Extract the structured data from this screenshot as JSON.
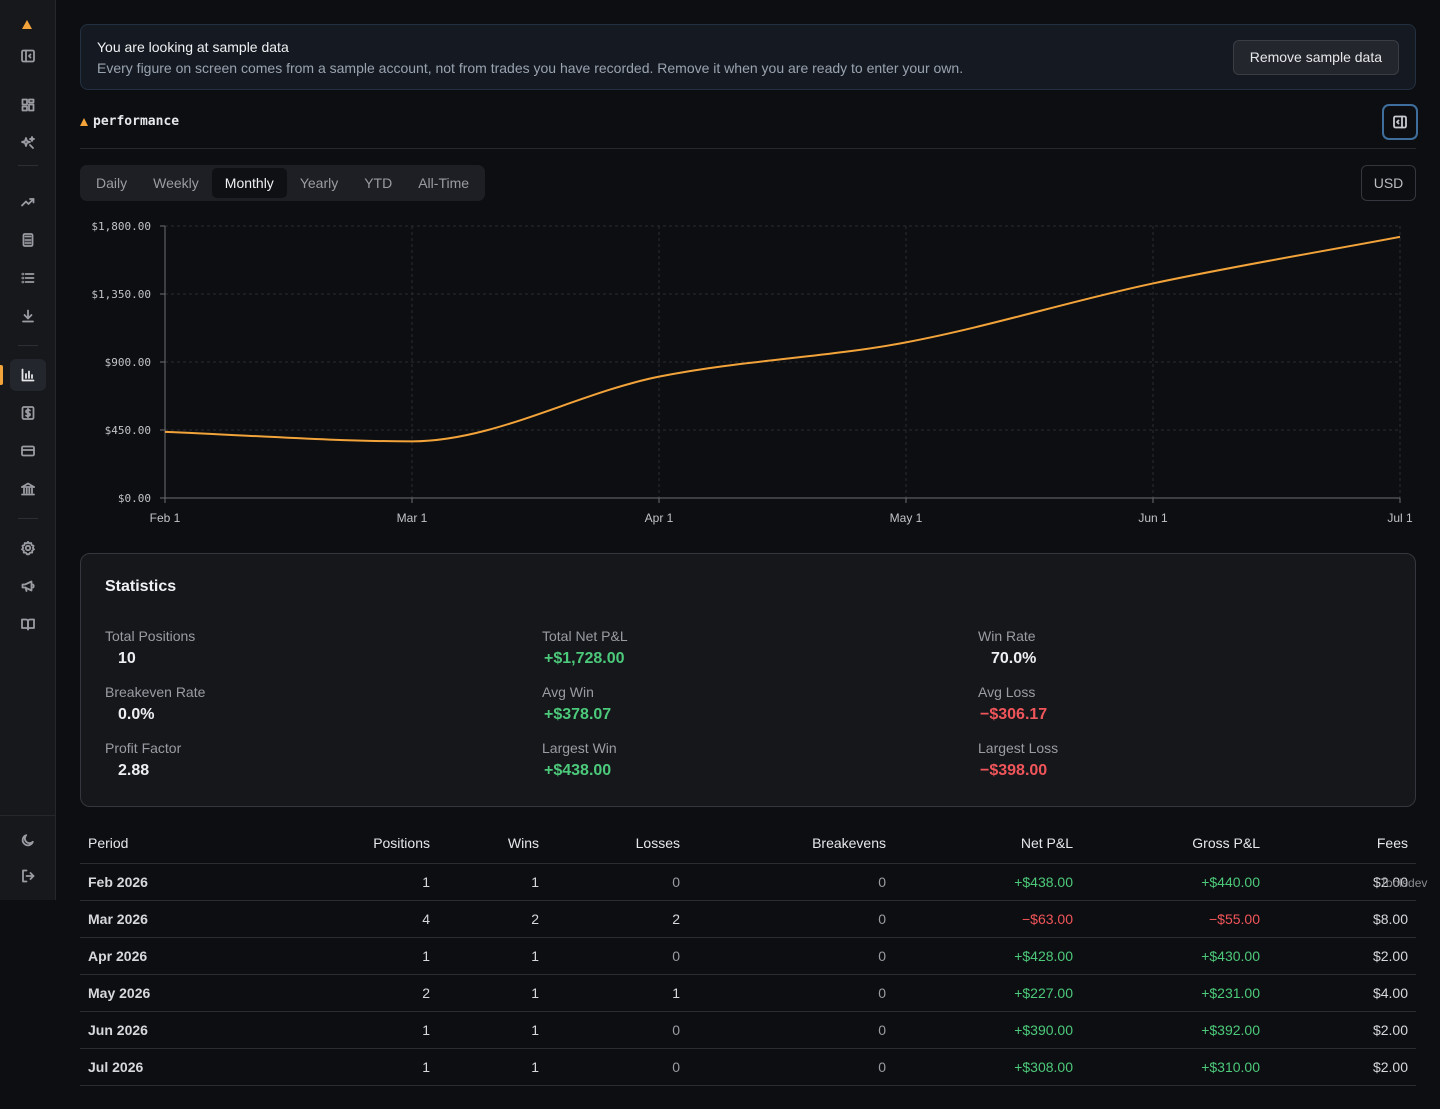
{
  "colors": {
    "accent": "#f2a33a",
    "positive": "#4cc97a",
    "negative": "#f0555a",
    "line": "#f2a33a"
  },
  "sidebar": {
    "icons": [
      "logo-icon",
      "sidebar-toggle-icon",
      "dashboard-icon",
      "sparkle-icon",
      "trending-icon",
      "calculator-icon",
      "list-icon",
      "download-icon",
      "bar-chart-icon",
      "dollar-icon",
      "card-icon",
      "bank-icon",
      "settings-icon",
      "megaphone-icon",
      "book-icon",
      "moon-icon",
      "logout-icon"
    ],
    "active": "bar-chart-icon"
  },
  "banner": {
    "title": "You are looking at sample data",
    "text": "Every figure on screen comes from a sample account, not from trades you have recorded. Remove it when you are ready to enter your own.",
    "button": "Remove sample data"
  },
  "header": {
    "title": "performance"
  },
  "tabs": [
    {
      "label": "Daily",
      "active": false
    },
    {
      "label": "Weekly",
      "active": false
    },
    {
      "label": "Monthly",
      "active": true
    },
    {
      "label": "Yearly",
      "active": false
    },
    {
      "label": "YTD",
      "active": false
    },
    {
      "label": "All-Time",
      "active": false
    }
  ],
  "currency": "USD",
  "chart_data": {
    "type": "line",
    "x": [
      "Feb 1",
      "Mar 1",
      "Apr 1",
      "May 1",
      "Jun 1",
      "Jul 1"
    ],
    "series": [
      {
        "values": [
          438,
          375,
          803,
          1030,
          1420,
          1728
        ]
      }
    ],
    "y_ticks": [
      "$0.00",
      "$450.00",
      "$900.00",
      "$1,350.00",
      "$1,800.00"
    ],
    "ylim": [
      0,
      1800
    ],
    "grid": true,
    "xlabel": "",
    "ylabel": ""
  },
  "stats": {
    "title": "Statistics",
    "items": [
      {
        "label": "Total Positions",
        "value": "10",
        "tone": ""
      },
      {
        "label": "Total Net P&L",
        "value": "+$1,728.00",
        "tone": "pos"
      },
      {
        "label": "Win Rate",
        "value": "70.0%",
        "tone": ""
      },
      {
        "label": "Breakeven Rate",
        "value": "0.0%",
        "tone": ""
      },
      {
        "label": "Avg Win",
        "value": "+$378.07",
        "tone": "pos"
      },
      {
        "label": "Avg Loss",
        "value": "−$306.17",
        "tone": "neg"
      },
      {
        "label": "Profit Factor",
        "value": "2.88",
        "tone": ""
      },
      {
        "label": "Largest Win",
        "value": "+$438.00",
        "tone": "pos"
      },
      {
        "label": "Largest Loss",
        "value": "−$398.00",
        "tone": "neg"
      }
    ]
  },
  "table": {
    "columns": [
      "Period",
      "Positions",
      "Wins",
      "Losses",
      "Breakevens",
      "Net P&L",
      "Gross P&L",
      "Fees"
    ],
    "rows": [
      [
        "Feb 2026",
        "1",
        "1",
        "0",
        "0",
        "+$438.00",
        "+$440.00",
        "$2.00"
      ],
      [
        "Mar 2026",
        "4",
        "2",
        "2",
        "0",
        "−$63.00",
        "−$55.00",
        "$8.00"
      ],
      [
        "Apr 2026",
        "1",
        "1",
        "0",
        "0",
        "+$428.00",
        "+$430.00",
        "$2.00"
      ],
      [
        "May 2026",
        "2",
        "1",
        "1",
        "0",
        "+$227.00",
        "+$231.00",
        "$4.00"
      ],
      [
        "Jun 2026",
        "1",
        "1",
        "0",
        "0",
        "+$390.00",
        "+$392.00",
        "$2.00"
      ],
      [
        "Jul 2026",
        "1",
        "1",
        "0",
        "0",
        "+$308.00",
        "+$310.00",
        "$2.00"
      ]
    ]
  },
  "dev_label": "Toolsdev"
}
